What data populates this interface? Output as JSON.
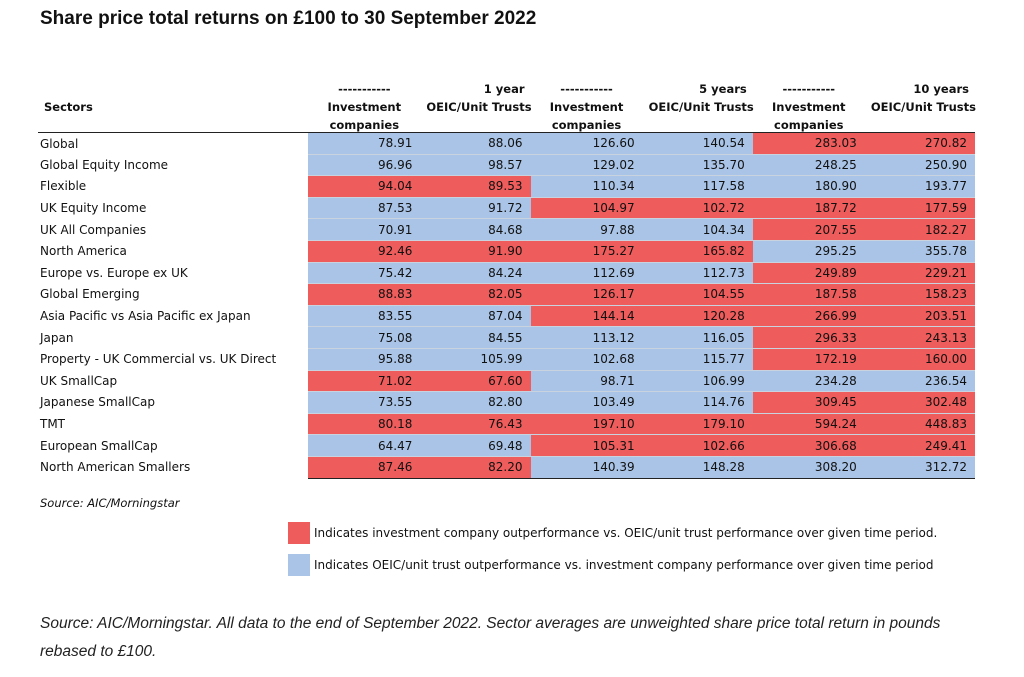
{
  "title": "Share price total returns on £100 to 30 September 2022",
  "table": {
    "header": {
      "sectors_label": "Sectors",
      "groups": [
        {
          "dashes": "-----------",
          "period": "1 year",
          "inv_line1": "Investment",
          "inv_line2": "companies",
          "oeic_label": "OEIC/Unit Trusts"
        },
        {
          "dashes": "-----------",
          "period": "5 years",
          "inv_line1": "Investment",
          "inv_line2": "companies",
          "oeic_label": "OEIC/Unit Trusts"
        },
        {
          "dashes": "-----------",
          "period": "10 years",
          "inv_line1": "Investment",
          "inv_line2": "companies",
          "oeic_label": "OEIC/Unit Trusts"
        }
      ]
    },
    "rows": [
      {
        "sector": "Global",
        "values": [
          "78.91",
          "88.06",
          "126.60",
          "140.54",
          "283.03",
          "270.82"
        ],
        "colors": [
          "blue",
          "blue",
          "blue",
          "blue",
          "red",
          "red"
        ]
      },
      {
        "sector": "Global Equity Income",
        "values": [
          "96.96",
          "98.57",
          "129.02",
          "135.70",
          "248.25",
          "250.90"
        ],
        "colors": [
          "blue",
          "blue",
          "blue",
          "blue",
          "blue",
          "blue"
        ]
      },
      {
        "sector": "Flexible",
        "values": [
          "94.04",
          "89.53",
          "110.34",
          "117.58",
          "180.90",
          "193.77"
        ],
        "colors": [
          "red",
          "red",
          "blue",
          "blue",
          "blue",
          "blue"
        ]
      },
      {
        "sector": "UK Equity Income",
        "values": [
          "87.53",
          "91.72",
          "104.97",
          "102.72",
          "187.72",
          "177.59"
        ],
        "colors": [
          "blue",
          "blue",
          "red",
          "red",
          "red",
          "red"
        ]
      },
      {
        "sector": "UK All Companies",
        "values": [
          "70.91",
          "84.68",
          "97.88",
          "104.34",
          "207.55",
          "182.27"
        ],
        "colors": [
          "blue",
          "blue",
          "blue",
          "blue",
          "red",
          "red"
        ]
      },
      {
        "sector": "North America",
        "values": [
          "92.46",
          "91.90",
          "175.27",
          "165.82",
          "295.25",
          "355.78"
        ],
        "colors": [
          "red",
          "red",
          "red",
          "red",
          "blue",
          "blue"
        ]
      },
      {
        "sector": "Europe vs. Europe ex UK",
        "values": [
          "75.42",
          "84.24",
          "112.69",
          "112.73",
          "249.89",
          "229.21"
        ],
        "colors": [
          "blue",
          "blue",
          "blue",
          "blue",
          "red",
          "red"
        ]
      },
      {
        "sector": "Global Emerging",
        "values": [
          "88.83",
          "82.05",
          "126.17",
          "104.55",
          "187.58",
          "158.23"
        ],
        "colors": [
          "red",
          "red",
          "red",
          "red",
          "red",
          "red"
        ]
      },
      {
        "sector": "Asia Pacific vs Asia Pacific ex Japan",
        "values": [
          "83.55",
          "87.04",
          "144.14",
          "120.28",
          "266.99",
          "203.51"
        ],
        "colors": [
          "blue",
          "blue",
          "red",
          "red",
          "red",
          "red"
        ]
      },
      {
        "sector": "Japan",
        "values": [
          "75.08",
          "84.55",
          "113.12",
          "116.05",
          "296.33",
          "243.13"
        ],
        "colors": [
          "blue",
          "blue",
          "blue",
          "blue",
          "red",
          "red"
        ]
      },
      {
        "sector": "Property - UK Commercial vs. UK Direct",
        "values": [
          "95.88",
          "105.99",
          "102.68",
          "115.77",
          "172.19",
          "160.00"
        ],
        "colors": [
          "blue",
          "blue",
          "blue",
          "blue",
          "red",
          "red"
        ]
      },
      {
        "sector": "UK SmallCap",
        "values": [
          "71.02",
          "67.60",
          "98.71",
          "106.99",
          "234.28",
          "236.54"
        ],
        "colors": [
          "red",
          "red",
          "blue",
          "blue",
          "blue",
          "blue"
        ]
      },
      {
        "sector": "Japanese SmallCap",
        "values": [
          "73.55",
          "82.80",
          "103.49",
          "114.76",
          "309.45",
          "302.48"
        ],
        "colors": [
          "blue",
          "blue",
          "blue",
          "blue",
          "red",
          "red"
        ]
      },
      {
        "sector": "TMT",
        "values": [
          "80.18",
          "76.43",
          "197.10",
          "179.10",
          "594.24",
          "448.83"
        ],
        "colors": [
          "red",
          "red",
          "red",
          "red",
          "red",
          "red"
        ]
      },
      {
        "sector": "European SmallCap",
        "values": [
          "64.47",
          "69.48",
          "105.31",
          "102.66",
          "306.68",
          "249.41"
        ],
        "colors": [
          "blue",
          "blue",
          "red",
          "red",
          "red",
          "red"
        ]
      },
      {
        "sector": "North American Smallers",
        "values": [
          "87.46",
          "82.20",
          "140.39",
          "148.28",
          "308.20",
          "312.72"
        ],
        "colors": [
          "red",
          "red",
          "blue",
          "blue",
          "blue",
          "blue"
        ]
      }
    ]
  },
  "source_note": "Source: AIC/Morningstar",
  "legend": [
    {
      "color": "#ee5c5c",
      "text": "Indicates investment company outperformance vs. OEIC/unit trust performance over given time period."
    },
    {
      "color": "#a9c4e6",
      "text": "Indicates OEIC/unit trust outperformance vs. investment company performance over given time period"
    }
  ],
  "footnote": "Source: AIC/Morningstar. All data to the end of September 2022. Sector averages are unweighted share price total return in pounds rebased to £100.",
  "colors": {
    "red": "#ee5c5c",
    "blue": "#a9c4e6"
  }
}
